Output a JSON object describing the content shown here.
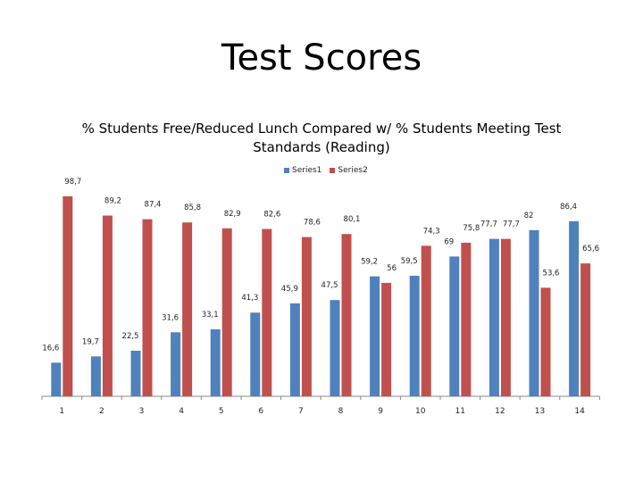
{
  "slide": {
    "title": "Test Scores"
  },
  "chart_data": {
    "type": "bar",
    "title": "% Students Free/Reduced Lunch Compared w/ % Students Meeting Test Standards (Reading)",
    "categories": [
      "1",
      "2",
      "3",
      "4",
      "5",
      "6",
      "7",
      "8",
      "9",
      "10",
      "11",
      "12",
      "13",
      "14"
    ],
    "series": [
      {
        "name": "Series1",
        "color": "#4F81BD",
        "values": [
          16.6,
          19.7,
          22.5,
          31.6,
          33.1,
          41.3,
          45.9,
          47.5,
          59.2,
          59.5,
          69,
          77.7,
          82,
          86.4
        ],
        "labels": [
          "16,6",
          "19,7",
          "22,5",
          "31,6",
          "33,1",
          "41,3",
          "45,9",
          "47,5",
          "59,2",
          "59,5",
          "69",
          "77,7",
          "82",
          "86,4"
        ]
      },
      {
        "name": "Series2",
        "color": "#C0504D",
        "values": [
          98.7,
          89.2,
          87.4,
          85.8,
          82.9,
          82.6,
          78.6,
          80.1,
          56,
          74.3,
          75.8,
          77.7,
          53.6,
          65.6
        ],
        "labels": [
          "98,7",
          "89,2",
          "87,4",
          "85,8",
          "82,9",
          "82,6",
          "78,6",
          "80,1",
          "56",
          "74,3",
          "75,8",
          "77,7",
          "53,6",
          "65,6"
        ]
      }
    ],
    "ylim": [
      0,
      100
    ],
    "grid": false,
    "legend_position": "top"
  }
}
